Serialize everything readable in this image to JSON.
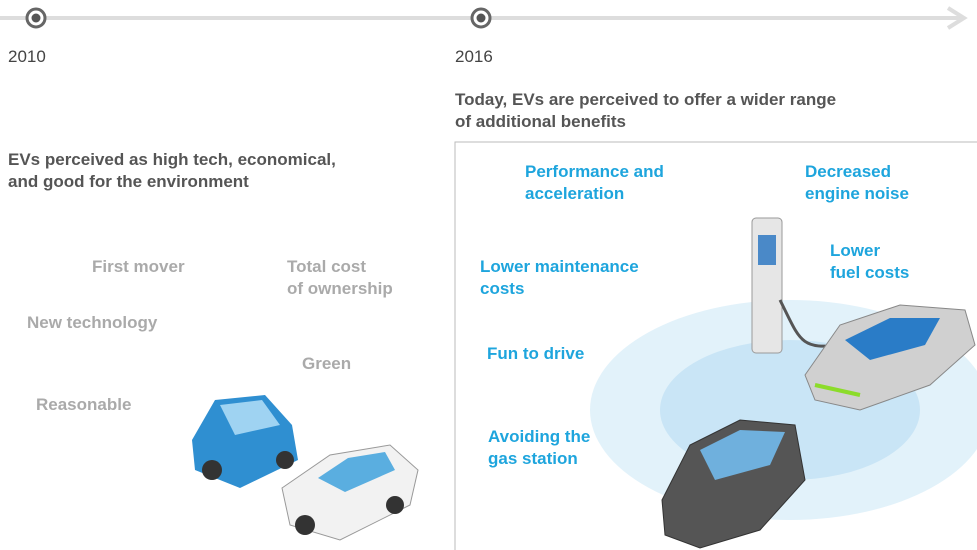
{
  "timeline": {
    "milestones": [
      "2010",
      "2016"
    ]
  },
  "before": {
    "heading": "EVs perceived as high tech, economical,\nand good for the environment",
    "benefits": [
      "First mover",
      "Total cost\nof ownership",
      "New technology",
      "Green",
      "Reasonable"
    ]
  },
  "after": {
    "heading": "Today, EVs are perceived to offer a wider range\nof additional benefits",
    "benefits": [
      "Performance and\nacceleration",
      "Decreased\nengine noise",
      "Lower\nfuel costs",
      "Lower maintenance\ncosts",
      "Fun to drive",
      "Avoiding the\ngas station"
    ]
  }
}
